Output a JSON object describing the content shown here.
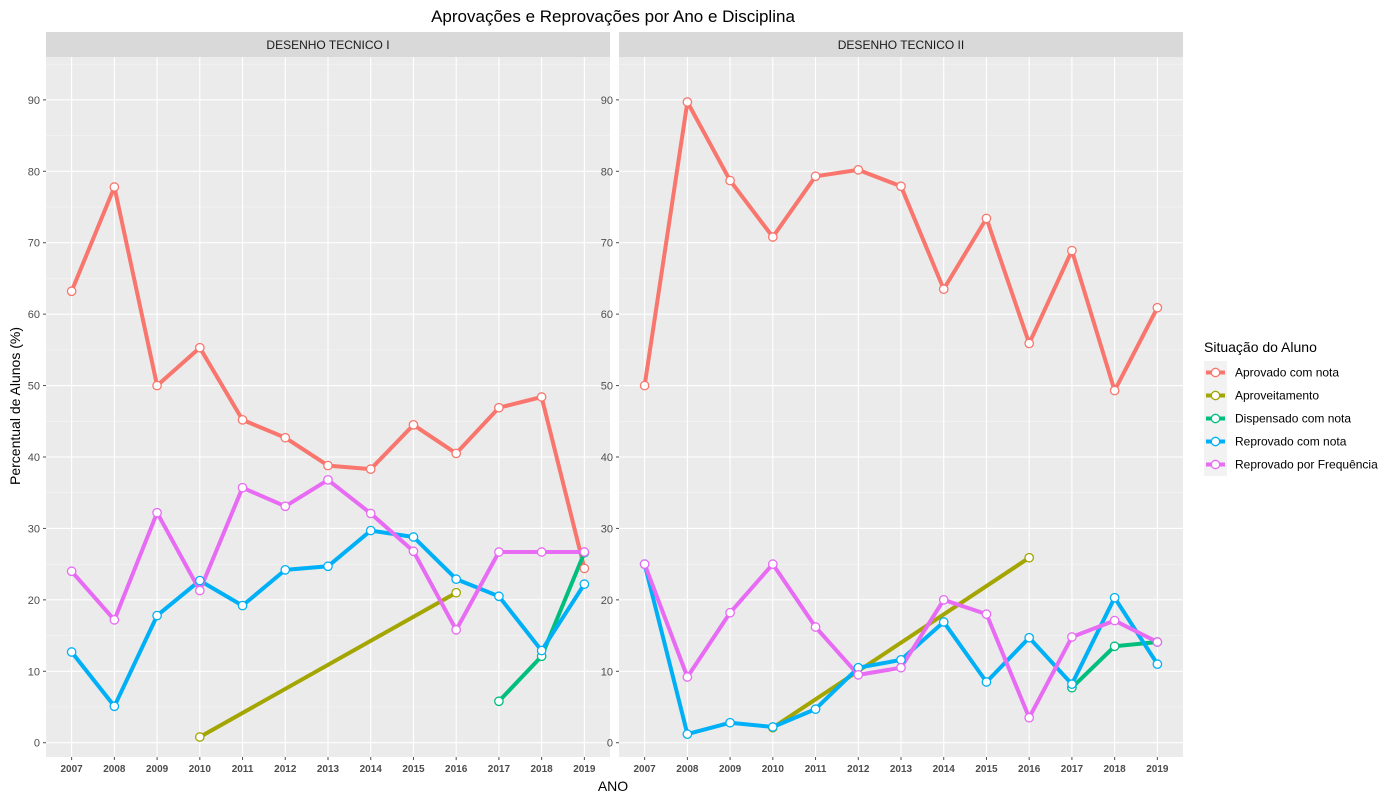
{
  "chart_data": {
    "type": "line",
    "title": "Aprovações e Reprovações por Ano e Disciplina",
    "xlabel": "ANO",
    "ylabel": "Percentual de Alunos (%)",
    "ylim": [
      -2,
      96
    ],
    "y_ticks": [
      0,
      10,
      20,
      30,
      40,
      50,
      60,
      70,
      80,
      90
    ],
    "x_ticks": [
      "2007",
      "2008",
      "2009",
      "2010",
      "2011",
      "2012",
      "2013",
      "2014",
      "2015",
      "2016",
      "2017",
      "2018",
      "2019"
    ],
    "grid": true,
    "legend": {
      "title": "Situação do Aluno",
      "position": "right",
      "entries": [
        "Aprovado com nota",
        "Aproveitamento",
        "Dispensado com nota",
        "Reprovado com nota",
        "Reprovado por Frequência"
      ]
    },
    "colors": {
      "Aprovado com nota": "#F8766D",
      "Aproveitamento": "#A3A500",
      "Dispensado com nota": "#00BF7D",
      "Reprovado com nota": "#00B0F6",
      "Reprovado por Frequência": "#E76BF3"
    },
    "panels": [
      {
        "strip": "DESENHO TECNICO I",
        "series": [
          {
            "name": "Aprovado com nota",
            "points": [
              [
                2007,
                63.2
              ],
              [
                2008,
                77.8
              ],
              [
                2009,
                50.0
              ],
              [
                2010,
                55.3
              ],
              [
                2011,
                45.2
              ],
              [
                2012,
                42.7
              ],
              [
                2013,
                38.8
              ],
              [
                2014,
                38.3
              ],
              [
                2015,
                44.5
              ],
              [
                2016,
                40.5
              ],
              [
                2017,
                46.9
              ],
              [
                2018,
                48.4
              ],
              [
                2019,
                24.4
              ]
            ]
          },
          {
            "name": "Aproveitamento",
            "points": [
              [
                2010,
                0.8
              ],
              [
                2016,
                21.0
              ]
            ]
          },
          {
            "name": "Dispensado com nota",
            "points": [
              [
                2017,
                5.8
              ],
              [
                2018,
                12.1
              ],
              [
                2019,
                26.6
              ]
            ]
          },
          {
            "name": "Reprovado com nota",
            "points": [
              [
                2007,
                12.7
              ],
              [
                2008,
                5.1
              ],
              [
                2009,
                17.8
              ],
              [
                2010,
                22.7
              ],
              [
                2011,
                19.2
              ],
              [
                2012,
                24.2
              ],
              [
                2013,
                24.7
              ],
              [
                2014,
                29.7
              ],
              [
                2015,
                28.8
              ],
              [
                2016,
                22.9
              ],
              [
                2017,
                20.5
              ],
              [
                2018,
                12.9
              ],
              [
                2019,
                22.2
              ]
            ]
          },
          {
            "name": "Reprovado por Frequência",
            "points": [
              [
                2007,
                24.0
              ],
              [
                2008,
                17.2
              ],
              [
                2009,
                32.2
              ],
              [
                2010,
                21.3
              ],
              [
                2011,
                35.7
              ],
              [
                2012,
                33.1
              ],
              [
                2013,
                36.8
              ],
              [
                2014,
                32.1
              ],
              [
                2015,
                26.8
              ],
              [
                2016,
                15.8
              ],
              [
                2017,
                26.7
              ],
              [
                2018,
                26.7
              ],
              [
                2019,
                26.7
              ]
            ]
          }
        ]
      },
      {
        "strip": "DESENHO TECNICO II",
        "series": [
          {
            "name": "Aprovado com nota",
            "points": [
              [
                2007,
                50.0
              ],
              [
                2008,
                89.7
              ],
              [
                2009,
                78.7
              ],
              [
                2010,
                70.8
              ],
              [
                2011,
                79.3
              ],
              [
                2012,
                80.2
              ],
              [
                2013,
                77.9
              ],
              [
                2014,
                63.5
              ],
              [
                2015,
                73.4
              ],
              [
                2016,
                55.9
              ],
              [
                2017,
                68.9
              ],
              [
                2018,
                49.3
              ],
              [
                2019,
                60.9
              ]
            ]
          },
          {
            "name": "Aproveitamento",
            "points": [
              [
                2010,
                2.1
              ],
              [
                2016,
                25.9
              ]
            ]
          },
          {
            "name": "Dispensado com nota",
            "points": [
              [
                2017,
                7.7
              ],
              [
                2018,
                13.5
              ],
              [
                2019,
                14.1
              ]
            ]
          },
          {
            "name": "Reprovado com nota",
            "points": [
              [
                2007,
                25.0
              ],
              [
                2008,
                1.2
              ],
              [
                2009,
                2.8
              ],
              [
                2010,
                2.2
              ],
              [
                2011,
                4.7
              ],
              [
                2012,
                10.5
              ],
              [
                2013,
                11.6
              ],
              [
                2014,
                16.9
              ],
              [
                2015,
                8.5
              ],
              [
                2016,
                14.7
              ],
              [
                2017,
                8.2
              ],
              [
                2018,
                20.3
              ],
              [
                2019,
                11.0
              ]
            ]
          },
          {
            "name": "Reprovado por Frequência",
            "points": [
              [
                2007,
                25.0
              ],
              [
                2008,
                9.2
              ],
              [
                2009,
                18.2
              ],
              [
                2010,
                25.0
              ],
              [
                2011,
                16.2
              ],
              [
                2012,
                9.5
              ],
              [
                2013,
                10.5
              ],
              [
                2014,
                20.0
              ],
              [
                2015,
                18.0
              ],
              [
                2016,
                3.5
              ],
              [
                2017,
                14.8
              ],
              [
                2018,
                17.1
              ],
              [
                2019,
                14.1
              ]
            ]
          }
        ]
      }
    ]
  }
}
